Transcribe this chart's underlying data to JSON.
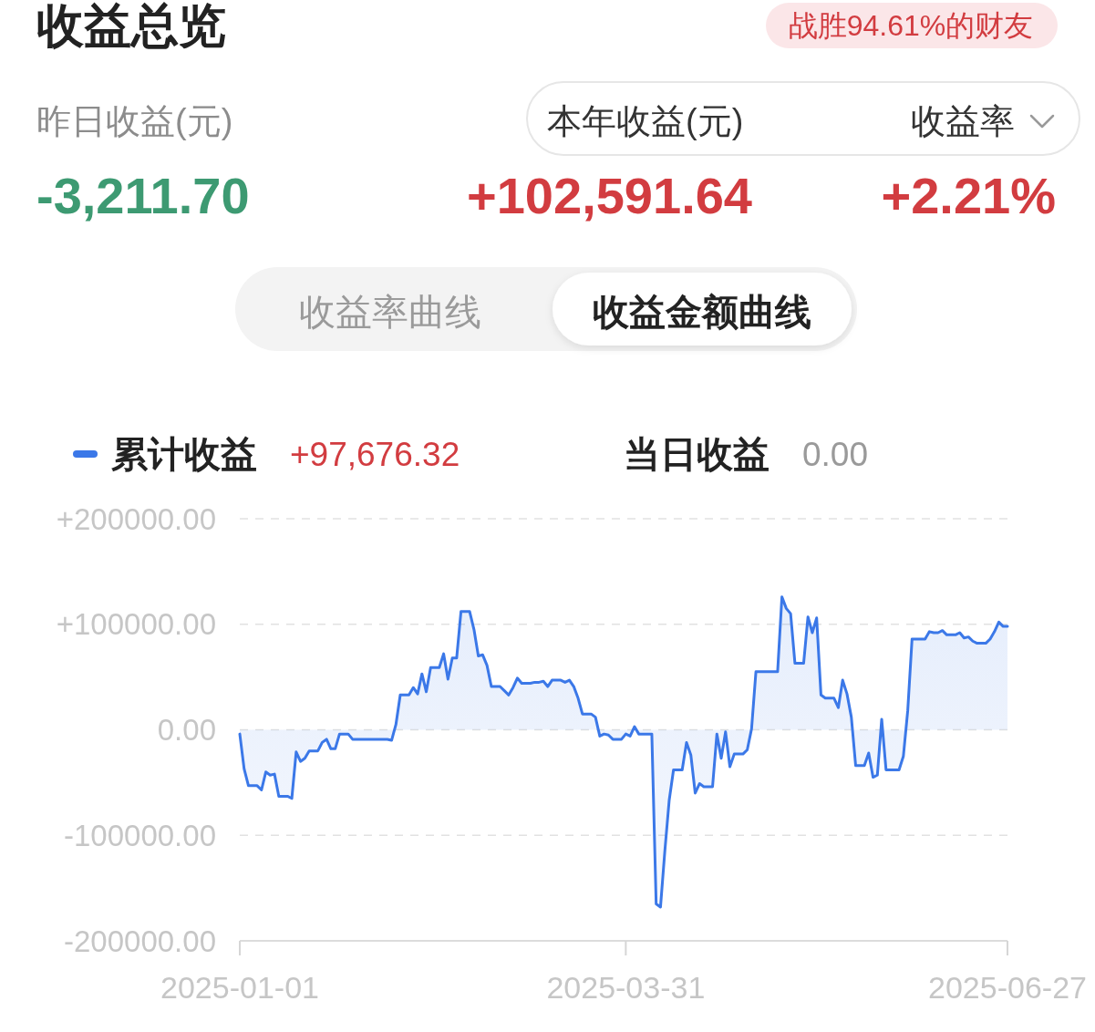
{
  "chart_data": {
    "type": "area",
    "title": "收益总览",
    "annotations": [
      "战胜94.61%的财友",
      "昨日收益(元)",
      "-3,211.70",
      "本年收益(元)",
      "+102,591.64",
      "收益率",
      "+2.21%",
      "收益率曲线",
      "收益金额曲线",
      "+97,676.32",
      "当日收益",
      "0.00"
    ],
    "legend": "top left",
    "grid": "y",
    "ylim": [
      -200000,
      200000
    ],
    "yticks": [
      {
        "value": 200000,
        "label": "+200000.00"
      },
      {
        "value": 100000,
        "label": "+100000.00"
      },
      {
        "value": 0,
        "label": "0.00"
      },
      {
        "value": -100000,
        "label": "-100000.00"
      },
      {
        "value": -200000,
        "label": "-200000.00"
      }
    ],
    "xlim": [
      "2025-01-01",
      "2025-06-27"
    ],
    "xticks": [
      "2025-01-01",
      "2025-03-31",
      "2025-06-27"
    ],
    "x": [
      "2025-01-01",
      "2025-01-02",
      "2025-01-03",
      "2025-01-05",
      "2025-01-06",
      "2025-01-07",
      "2025-01-08",
      "2025-01-09",
      "2025-01-10",
      "2025-01-12",
      "2025-01-13",
      "2025-01-14",
      "2025-01-15",
      "2025-01-16",
      "2025-01-17",
      "2025-01-19",
      "2025-01-20",
      "2025-01-21",
      "2025-01-22",
      "2025-01-23",
      "2025-01-24",
      "2025-01-26",
      "2025-01-27",
      "2025-02-04",
      "2025-02-05",
      "2025-02-06",
      "2025-02-07",
      "2025-02-09",
      "2025-02-10",
      "2025-02-11",
      "2025-02-12",
      "2025-02-13",
      "2025-02-14",
      "2025-02-16",
      "2025-02-17",
      "2025-02-18",
      "2025-02-19",
      "2025-02-20",
      "2025-02-21",
      "2025-02-23",
      "2025-02-24",
      "2025-02-25",
      "2025-02-26",
      "2025-02-27",
      "2025-02-28",
      "2025-03-02",
      "2025-03-03",
      "2025-03-04",
      "2025-03-05",
      "2025-03-06",
      "2025-03-07",
      "2025-03-09",
      "2025-03-10",
      "2025-03-11",
      "2025-03-12",
      "2025-03-13",
      "2025-03-14",
      "2025-03-16",
      "2025-03-17",
      "2025-03-18",
      "2025-03-19",
      "2025-03-20",
      "2025-03-21",
      "2025-03-23",
      "2025-03-24",
      "2025-03-25",
      "2025-03-26",
      "2025-03-27",
      "2025-03-28",
      "2025-03-30",
      "2025-03-31",
      "2025-04-01",
      "2025-04-02",
      "2025-04-03",
      "2025-04-06",
      "2025-04-07",
      "2025-04-08",
      "2025-04-09",
      "2025-04-10",
      "2025-04-11",
      "2025-04-13",
      "2025-04-14",
      "2025-04-15",
      "2025-04-16",
      "2025-04-17",
      "2025-04-18",
      "2025-04-20",
      "2025-04-21",
      "2025-04-22",
      "2025-04-23",
      "2025-04-24",
      "2025-04-25",
      "2025-04-27",
      "2025-04-28",
      "2025-04-29",
      "2025-04-30",
      "2025-05-05",
      "2025-05-06",
      "2025-05-07",
      "2025-05-08",
      "2025-05-09",
      "2025-05-11",
      "2025-05-12",
      "2025-05-13",
      "2025-05-14",
      "2025-05-15",
      "2025-05-16",
      "2025-05-18",
      "2025-05-19",
      "2025-05-20",
      "2025-05-21",
      "2025-05-22",
      "2025-05-23",
      "2025-05-25",
      "2025-05-26",
      "2025-05-27",
      "2025-05-28",
      "2025-05-29",
      "2025-05-30",
      "2025-06-02",
      "2025-06-03",
      "2025-06-04",
      "2025-06-05",
      "2025-06-08",
      "2025-06-09",
      "2025-06-10",
      "2025-06-11",
      "2025-06-12",
      "2025-06-13",
      "2025-06-15",
      "2025-06-16",
      "2025-06-17",
      "2025-06-18",
      "2025-06-19",
      "2025-06-20",
      "2025-06-22",
      "2025-06-23",
      "2025-06-24",
      "2025-06-25",
      "2025-06-26",
      "2025-06-27"
    ],
    "series": [
      {
        "name": "累计收益",
        "color": "#3b78e8",
        "values": [
          -4000,
          -37000,
          -53000,
          -53000,
          -57000,
          -40000,
          -43000,
          -42000,
          -63000,
          -63000,
          -65000,
          -21000,
          -30000,
          -27000,
          -20000,
          -20000,
          -12000,
          -9000,
          -18000,
          -18000,
          -4000,
          -4000,
          -9000,
          -9000,
          -10000,
          5000,
          33000,
          33000,
          40000,
          34000,
          53000,
          36000,
          59000,
          59000,
          72000,
          48000,
          68000,
          68000,
          112000,
          112000,
          95000,
          70000,
          71000,
          61000,
          41000,
          41000,
          37000,
          33000,
          40000,
          49000,
          44000,
          44000,
          45000,
          45000,
          46000,
          41000,
          47000,
          47000,
          45000,
          47000,
          41000,
          30000,
          15000,
          15000,
          12000,
          -6000,
          -4000,
          -5000,
          -9000,
          -9000,
          -4000,
          -6000,
          3000,
          -4000,
          -4000,
          -165000,
          -168000,
          -115000,
          -67000,
          -38000,
          -38000,
          -12000,
          -24000,
          -60000,
          -51000,
          -54000,
          -54000,
          -4000,
          -27000,
          -2000,
          -35000,
          -23000,
          -23000,
          -19000,
          1000,
          55000,
          55000,
          126000,
          115000,
          110000,
          63000,
          63000,
          107000,
          92000,
          106000,
          33000,
          30000,
          30000,
          21000,
          47000,
          34000,
          12000,
          -34000,
          -34000,
          -22000,
          -45000,
          -43000,
          10000,
          -38000,
          -38000,
          -25000,
          18000,
          86000,
          86000,
          93000,
          92000,
          92000,
          94000,
          90000,
          90000,
          92000,
          87000,
          88000,
          84000,
          82000,
          82000,
          86000,
          93000,
          102000,
          98000,
          98000
        ]
      }
    ]
  }
}
